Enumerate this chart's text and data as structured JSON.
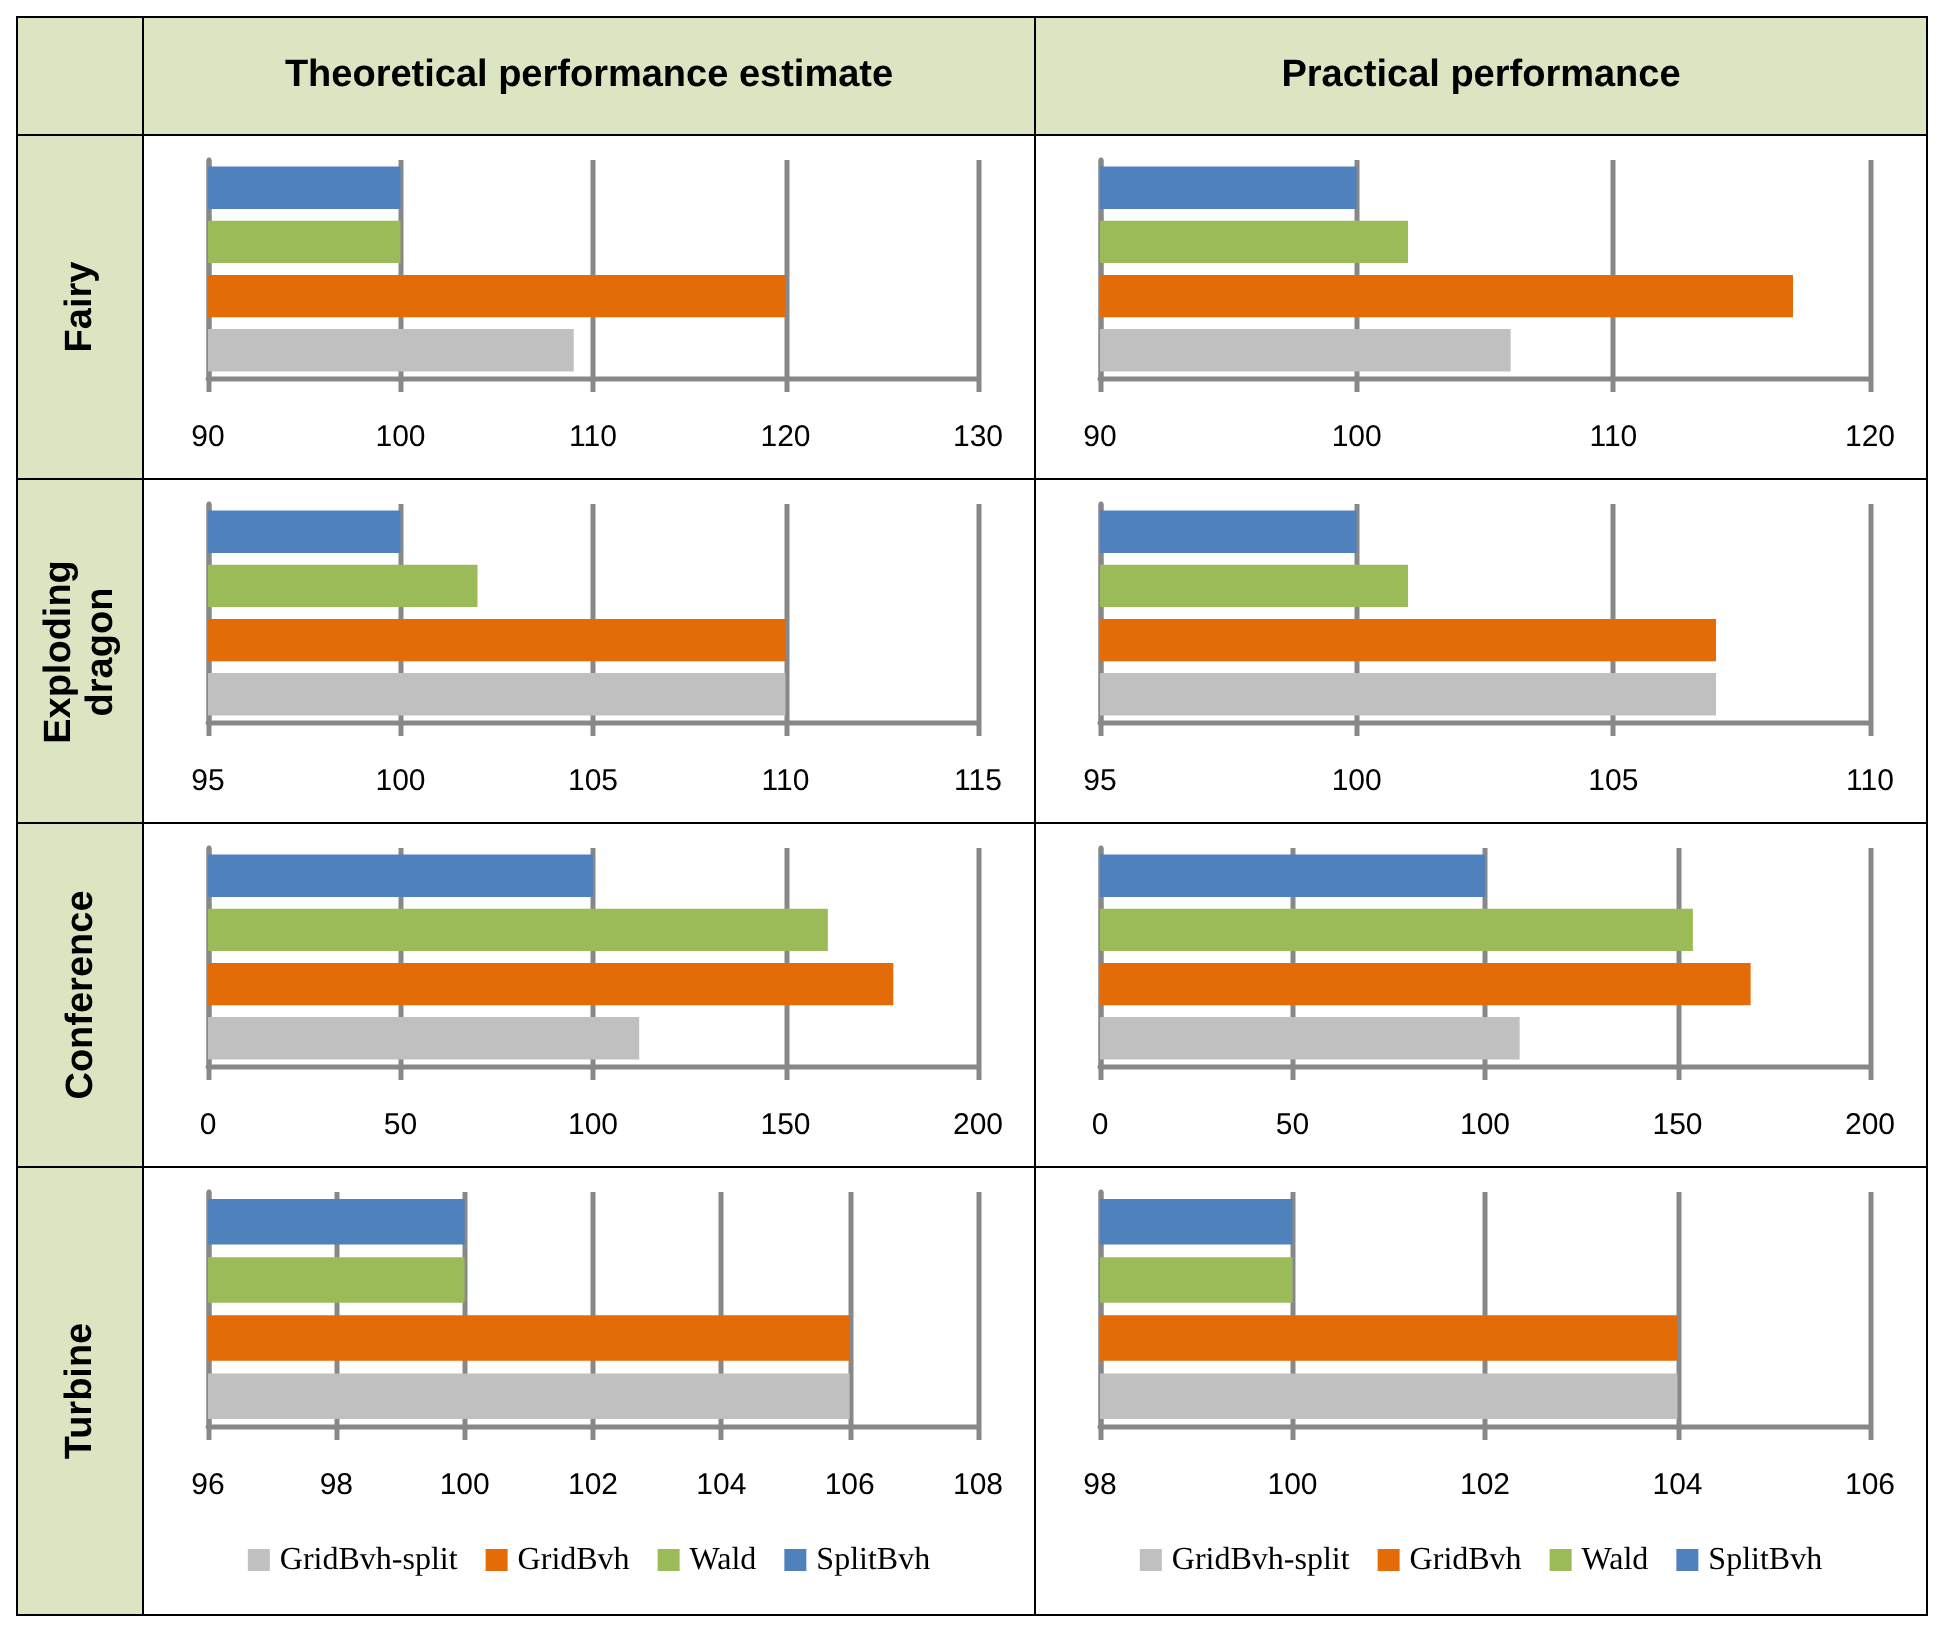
{
  "chart_data": [
    {
      "type": "bar",
      "orientation": "horizontal",
      "title": "Theoretical performance estimate",
      "ylabel": "Fairy",
      "categories": [
        null
      ],
      "xlim": [
        90,
        130
      ],
      "xticks": [
        90,
        100,
        110,
        120,
        130
      ],
      "grid": "x",
      "legend": false,
      "series": [
        {
          "color": "#c0c0c0",
          "values": [
            109
          ]
        },
        {
          "color": "#e36c09",
          "values": [
            120
          ]
        },
        {
          "color": "#9bbb59",
          "values": [
            100
          ]
        },
        {
          "color": "#4f81bd",
          "values": [
            100
          ]
        }
      ]
    },
    {
      "type": "bar",
      "orientation": "horizontal",
      "title": "Practical performance",
      "categories": [
        null
      ],
      "xlim": [
        90,
        120
      ],
      "xticks": [
        90,
        100,
        110,
        120
      ],
      "grid": "x",
      "legend": false,
      "series": [
        {
          "color": "#c0c0c0",
          "values": [
            106
          ]
        },
        {
          "color": "#e36c09",
          "values": [
            117
          ]
        },
        {
          "color": "#9bbb59",
          "values": [
            102
          ]
        },
        {
          "color": "#4f81bd",
          "values": [
            100
          ]
        }
      ]
    },
    {
      "type": "bar",
      "orientation": "horizontal",
      "ylabel": "Exploding dragon",
      "categories": [
        null
      ],
      "xlim": [
        95,
        115
      ],
      "xticks": [
        95,
        100,
        105,
        110,
        115
      ],
      "grid": "x",
      "legend": false,
      "series": [
        {
          "color": "#c0c0c0",
          "values": [
            110
          ]
        },
        {
          "color": "#e36c09",
          "values": [
            110
          ]
        },
        {
          "color": "#9bbb59",
          "values": [
            102
          ]
        },
        {
          "color": "#4f81bd",
          "values": [
            100
          ]
        }
      ]
    },
    {
      "type": "bar",
      "orientation": "horizontal",
      "categories": [
        null
      ],
      "xlim": [
        95,
        110
      ],
      "xticks": [
        95,
        100,
        105,
        110
      ],
      "grid": "x",
      "legend": false,
      "series": [
        {
          "color": "#c0c0c0",
          "values": [
            107
          ]
        },
        {
          "color": "#e36c09",
          "values": [
            107
          ]
        },
        {
          "color": "#9bbb59",
          "values": [
            101
          ]
        },
        {
          "color": "#4f81bd",
          "values": [
            100
          ]
        }
      ]
    },
    {
      "type": "bar",
      "orientation": "horizontal",
      "ylabel": "Conference",
      "categories": [
        null
      ],
      "xlim": [
        0,
        200
      ],
      "xticks": [
        0,
        50,
        100,
        150,
        200
      ],
      "grid": "x",
      "legend": false,
      "series": [
        {
          "color": "#c0c0c0",
          "values": [
            112
          ]
        },
        {
          "color": "#e36c09",
          "values": [
            178
          ]
        },
        {
          "color": "#9bbb59",
          "values": [
            161
          ]
        },
        {
          "color": "#4f81bd",
          "values": [
            100
          ]
        }
      ]
    },
    {
      "type": "bar",
      "orientation": "horizontal",
      "categories": [
        null
      ],
      "xlim": [
        0,
        200
      ],
      "xticks": [
        0,
        50,
        100,
        150,
        200
      ],
      "grid": "x",
      "legend": false,
      "series": [
        {
          "color": "#c0c0c0",
          "values": [
            109
          ]
        },
        {
          "color": "#e36c09",
          "values": [
            169
          ]
        },
        {
          "color": "#9bbb59",
          "values": [
            154
          ]
        },
        {
          "color": "#4f81bd",
          "values": [
            100
          ]
        }
      ]
    },
    {
      "type": "bar",
      "orientation": "horizontal",
      "ylabel": "Turbine",
      "categories": [
        null
      ],
      "xlim": [
        96,
        108
      ],
      "xticks": [
        96,
        98,
        100,
        102,
        104,
        106,
        108
      ],
      "grid": "x",
      "legend": "bottom",
      "series": [
        {
          "name": "GridBvh-split",
          "color": "#c0c0c0",
          "values": [
            106
          ]
        },
        {
          "name": "GridBvh",
          "color": "#e36c09",
          "values": [
            106
          ]
        },
        {
          "name": "Wald",
          "color": "#9bbb59",
          "values": [
            100
          ]
        },
        {
          "name": "SplitBvh",
          "color": "#4f81bd",
          "values": [
            100
          ]
        }
      ]
    },
    {
      "type": "bar",
      "orientation": "horizontal",
      "categories": [
        null
      ],
      "xlim": [
        98,
        106
      ],
      "xticks": [
        98,
        100,
        102,
        104,
        106
      ],
      "grid": "x",
      "legend": "bottom",
      "series": [
        {
          "name": "GridBvh-split",
          "color": "#c0c0c0",
          "values": [
            104
          ]
        },
        {
          "name": "GridBvh",
          "color": "#e36c09",
          "values": [
            104
          ]
        },
        {
          "name": "Wald",
          "color": "#9bbb59",
          "values": [
            100
          ]
        },
        {
          "name": "SplitBvh",
          "color": "#4f81bd",
          "values": [
            100
          ]
        }
      ]
    }
  ]
}
